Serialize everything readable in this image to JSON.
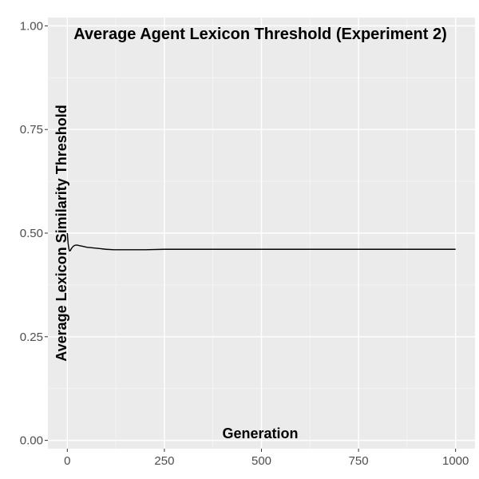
{
  "chart_data": {
    "type": "line",
    "title": "Average Agent Lexicon Threshold (Experiment 2)",
    "xlabel": "Generation",
    "ylabel": "Average Lexicon Similarity Threshold",
    "xlim": [
      -50,
      1050
    ],
    "ylim": [
      -0.02,
      1.02
    ],
    "x_ticks": [
      0,
      250,
      500,
      750,
      1000
    ],
    "x_tick_labels": [
      "0",
      "250",
      "500",
      "750",
      "1000"
    ],
    "y_ticks": [
      0,
      0.25,
      0.5,
      0.75,
      1
    ],
    "y_tick_labels": [
      "0.00",
      "0.25",
      "0.50",
      "0.75",
      "1.00"
    ],
    "grid": true,
    "series": [
      {
        "color": "#000000",
        "x": [
          0,
          2,
          4,
          6,
          8,
          10,
          14,
          18,
          22,
          26,
          30,
          40,
          50,
          60,
          80,
          100,
          120,
          150,
          200,
          250,
          300,
          400,
          500,
          600,
          700,
          800,
          900,
          1000
        ],
        "y": [
          0.5,
          0.475,
          0.462,
          0.457,
          0.458,
          0.462,
          0.467,
          0.47,
          0.471,
          0.471,
          0.47,
          0.468,
          0.466,
          0.465,
          0.463,
          0.461,
          0.46,
          0.46,
          0.46,
          0.461,
          0.461,
          0.461,
          0.461,
          0.461,
          0.461,
          0.461,
          0.461,
          0.461
        ]
      }
    ]
  }
}
